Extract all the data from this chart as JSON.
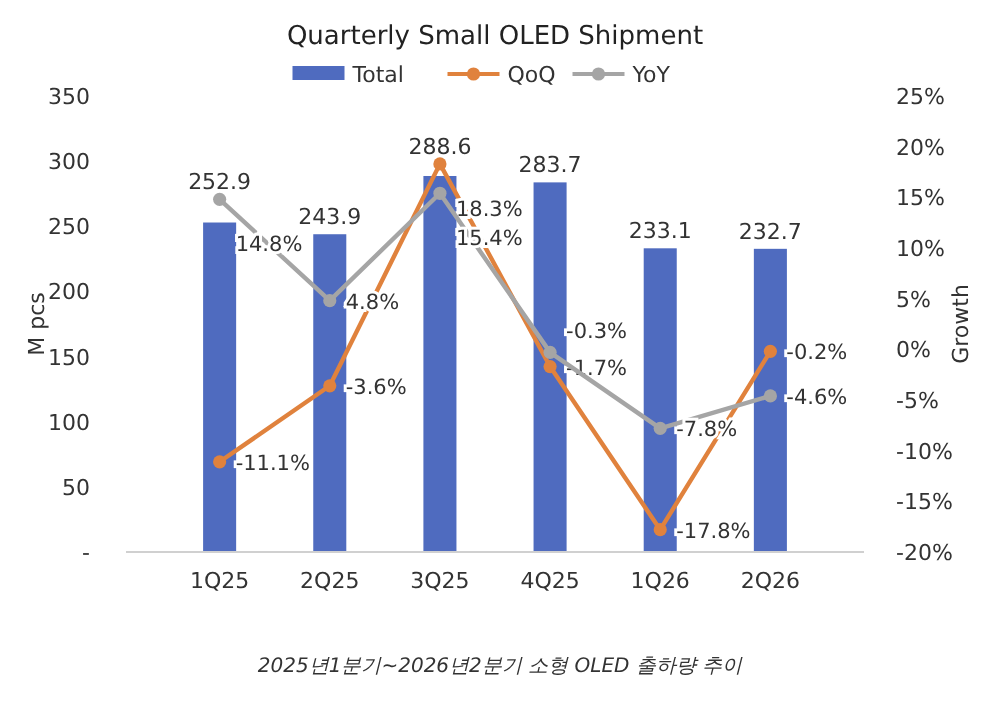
{
  "chart_data": {
    "type": "bar",
    "title": "Quarterly Small OLED Shipment",
    "ylabel": "M pcs",
    "y2label": "Growth",
    "categories": [
      "1Q25",
      "2Q25",
      "3Q25",
      "4Q25",
      "1Q26",
      "2Q26"
    ],
    "series": [
      {
        "name": "Total",
        "color": "#4f6bbf",
        "values": [
          252.9,
          243.9,
          288.6,
          283.7,
          233.1,
          232.7
        ],
        "value_labels": [
          "252.9",
          "243.9",
          "288.6",
          "283.7",
          "233.1",
          "232.7"
        ]
      },
      {
        "name": "QoQ",
        "type": "line",
        "axis": "y2",
        "color": "#e0823d",
        "values": [
          -11.1,
          -3.6,
          18.3,
          -1.7,
          -17.8,
          -0.2
        ],
        "value_labels": [
          "-11.1%",
          "-3.6%",
          "18.3%",
          "-1.7%",
          "-17.8%",
          "-0.2%"
        ]
      },
      {
        "name": "YoY",
        "type": "line",
        "axis": "y2",
        "color": "#a5a5a5",
        "values": [
          14.8,
          4.8,
          15.4,
          -0.3,
          -7.8,
          -4.6
        ],
        "value_labels": [
          "14.8%",
          "4.8%",
          "15.4%",
          "-0.3%",
          "-7.8%",
          "-4.6%"
        ]
      }
    ],
    "ylim": [
      0,
      350
    ],
    "yticks": [
      {
        "value": 0,
        "label": "-"
      },
      50,
      100,
      150,
      200,
      250,
      300,
      350
    ],
    "y2lim": [
      -20,
      25
    ],
    "y2ticks": [
      {
        "value": -20,
        "label": "-20%"
      },
      {
        "value": -15,
        "label": "-15%"
      },
      {
        "value": -10,
        "label": "-10%"
      },
      {
        "value": -5,
        "label": "-5%"
      },
      {
        "value": 0,
        "label": "0%"
      },
      {
        "value": 5,
        "label": "5%"
      },
      {
        "value": 10,
        "label": "10%"
      },
      {
        "value": 15,
        "label": "15%"
      },
      {
        "value": 20,
        "label": "20%"
      },
      {
        "value": 25,
        "label": "25%"
      }
    ],
    "grid": false,
    "legend": "top",
    "marker": "circle",
    "line_style": "solid",
    "annotations": [
      "2025년1분기~2026년2분기 소형 OLED 출하량 추이"
    ]
  }
}
